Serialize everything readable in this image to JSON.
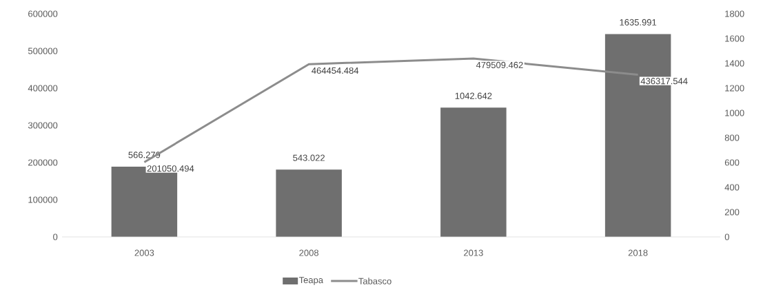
{
  "chart_data": {
    "type": "bar",
    "categories": [
      "2003",
      "2008",
      "2013",
      "2018"
    ],
    "series": [
      {
        "name": "Teapa",
        "axis": "y2",
        "color": "#6f6f6f",
        "values": [
          566.279,
          543.022,
          1042.642,
          1635.991
        ]
      },
      {
        "name": "Tabasco",
        "type": "line",
        "axis": "y",
        "color": "#8c8c8c",
        "values": [
          201050.494,
          464454.484,
          479509.462,
          436317.544
        ]
      }
    ],
    "ylim": [
      0,
      600000
    ],
    "yticks": [
      0,
      100000,
      200000,
      300000,
      400000,
      500000,
      600000
    ],
    "y2lim": [
      0,
      1800
    ],
    "y2ticks": [
      0,
      200,
      400,
      600,
      800,
      1000,
      1200,
      1400,
      1600,
      1800
    ],
    "data_labels": true,
    "legend": "bottom",
    "line_style": "solid"
  }
}
